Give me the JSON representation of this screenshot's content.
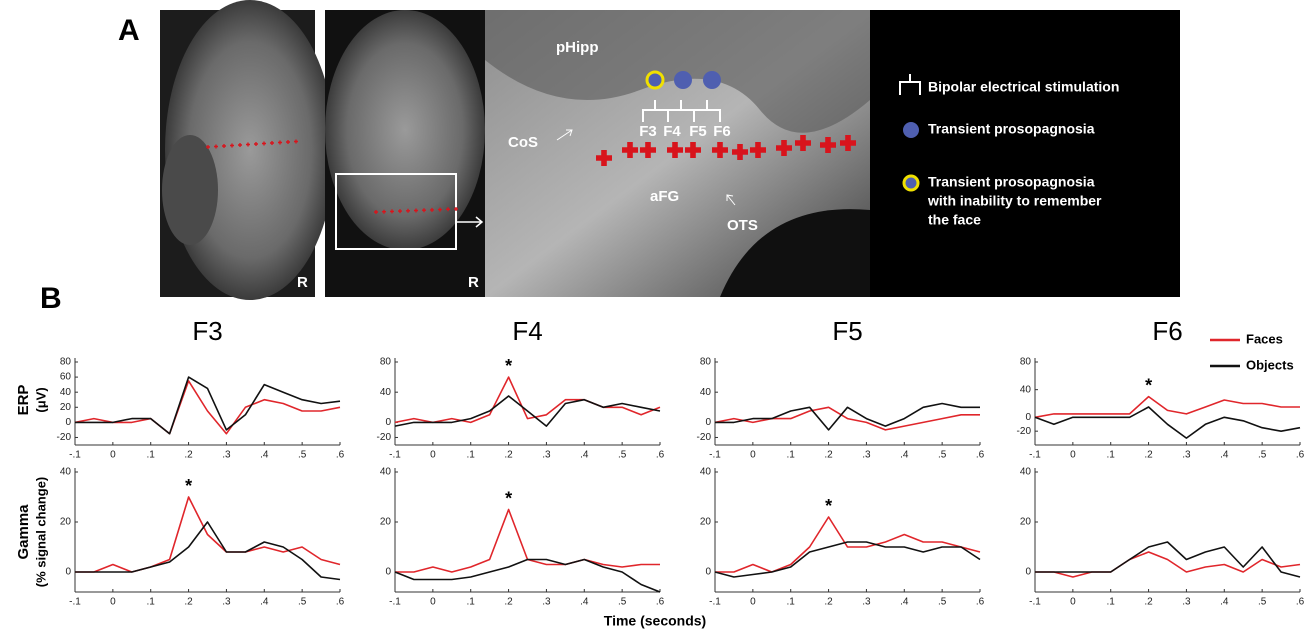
{
  "panel_a": {
    "label": "A",
    "image_labels": [
      "R",
      "R"
    ],
    "regions": [
      "pHipp",
      "CoS",
      "aFG",
      "OTS"
    ],
    "contacts": [
      "F3",
      "F4",
      "F5",
      "F6"
    ],
    "legend": [
      "Bipolar electrical stimulation",
      "Transient prosopagnosia",
      [
        "Transient prosopagnosia",
        "with inability to remember",
        "the face"
      ]
    ]
  },
  "panel_b": {
    "label": "B",
    "row_labels": [
      [
        "ERP",
        "(μV)"
      ],
      [
        "Gamma",
        "(% signal change)"
      ]
    ],
    "x_label": "Time (seconds)"
  },
  "chart_data": [
    {
      "type": "line",
      "title": "F3",
      "x": [
        -0.1,
        -0.05,
        0,
        0.05,
        0.1,
        0.15,
        0.2,
        0.25,
        0.3,
        0.35,
        0.4,
        0.45,
        0.5,
        0.55,
        0.6
      ],
      "series": [
        {
          "name": "Faces",
          "color": "#e0262b",
          "values": [
            0,
            5,
            0,
            0,
            5,
            -15,
            55,
            15,
            -15,
            20,
            30,
            25,
            15,
            15,
            20
          ]
        },
        {
          "name": "Objects",
          "color": "#111111",
          "values": [
            0,
            0,
            0,
            5,
            5,
            -15,
            60,
            45,
            -10,
            10,
            50,
            40,
            30,
            25,
            28
          ]
        }
      ],
      "xlim": [
        -0.1,
        0.6
      ],
      "xticks": [
        {
          "value": -0.1,
          "label": "-.1"
        },
        0,
        {
          "value": 0.1,
          "label": ".1"
        },
        {
          "value": 0.2,
          "label": ".2"
        },
        {
          "value": 0.3,
          "label": ".3"
        },
        {
          "value": 0.4,
          "label": ".4"
        },
        {
          "value": 0.5,
          "label": ".5"
        },
        {
          "value": 0.6,
          "label": ".6"
        }
      ],
      "ylim": [
        -30,
        80
      ],
      "yticks": [
        -20,
        0,
        20,
        40,
        60,
        80
      ]
    },
    {
      "type": "line",
      "title": "F4",
      "annotation": "*",
      "x": [
        -0.1,
        -0.05,
        0,
        0.05,
        0.1,
        0.15,
        0.2,
        0.25,
        0.3,
        0.35,
        0.4,
        0.45,
        0.5,
        0.55,
        0.6
      ],
      "series": [
        {
          "name": "Faces",
          "color": "#e0262b",
          "values": [
            0,
            5,
            0,
            5,
            0,
            10,
            60,
            5,
            10,
            30,
            30,
            20,
            20,
            10,
            20
          ]
        },
        {
          "name": "Objects",
          "color": "#111111",
          "values": [
            -5,
            0,
            0,
            0,
            5,
            15,
            35,
            15,
            -5,
            25,
            30,
            20,
            25,
            20,
            15
          ]
        }
      ],
      "xlim": [
        -0.1,
        0.6
      ],
      "xticks": [
        {
          "value": -0.1,
          "label": "-.1"
        },
        0,
        {
          "value": 0.1,
          "label": ".1"
        },
        {
          "value": 0.2,
          "label": ".2"
        },
        {
          "value": 0.3,
          "label": ".3"
        },
        {
          "value": 0.4,
          "label": ".4"
        },
        {
          "value": 0.5,
          "label": ".5"
        },
        {
          "value": 0.6,
          "label": ".6"
        }
      ],
      "ylim": [
        -30,
        80
      ],
      "yticks": [
        -20,
        0,
        40,
        80
      ]
    },
    {
      "type": "line",
      "title": "F5",
      "x": [
        -0.1,
        -0.05,
        0,
        0.05,
        0.1,
        0.15,
        0.2,
        0.25,
        0.3,
        0.35,
        0.4,
        0.45,
        0.5,
        0.55,
        0.6
      ],
      "series": [
        {
          "name": "Faces",
          "color": "#e0262b",
          "values": [
            0,
            5,
            0,
            5,
            5,
            15,
            20,
            5,
            0,
            -10,
            -5,
            0,
            5,
            10,
            10
          ]
        },
        {
          "name": "Objects",
          "color": "#111111",
          "values": [
            0,
            0,
            5,
            5,
            15,
            20,
            -10,
            20,
            5,
            -5,
            5,
            20,
            25,
            20,
            20
          ]
        }
      ],
      "xlim": [
        -0.1,
        0.6
      ],
      "xticks": [
        {
          "value": -0.1,
          "label": "-.1"
        },
        0,
        {
          "value": 0.1,
          "label": ".1"
        },
        {
          "value": 0.2,
          "label": ".2"
        },
        {
          "value": 0.3,
          "label": ".3"
        },
        {
          "value": 0.4,
          "label": ".4"
        },
        {
          "value": 0.5,
          "label": ".5"
        },
        {
          "value": 0.6,
          "label": ".6"
        }
      ],
      "ylim": [
        -30,
        80
      ],
      "yticks": [
        -20,
        0,
        40,
        80
      ]
    },
    {
      "type": "line",
      "title": "F6",
      "annotation": "*",
      "legend": "upper right",
      "x": [
        -0.1,
        -0.05,
        0,
        0.05,
        0.1,
        0.15,
        0.2,
        0.25,
        0.3,
        0.35,
        0.4,
        0.45,
        0.5,
        0.55,
        0.6
      ],
      "series": [
        {
          "name": "Faces",
          "color": "#e0262b",
          "values": [
            0,
            5,
            5,
            5,
            5,
            5,
            30,
            10,
            5,
            15,
            25,
            20,
            20,
            15,
            15
          ]
        },
        {
          "name": "Objects",
          "color": "#111111",
          "values": [
            0,
            -10,
            0,
            0,
            0,
            0,
            15,
            -10,
            -30,
            -10,
            0,
            -5,
            -15,
            -20,
            -15
          ]
        }
      ],
      "xlim": [
        -0.1,
        0.6
      ],
      "xticks": [
        {
          "value": -0.1,
          "label": "-.1"
        },
        0,
        {
          "value": 0.1,
          "label": ".1"
        },
        {
          "value": 0.2,
          "label": ".2"
        },
        {
          "value": 0.3,
          "label": ".3"
        },
        {
          "value": 0.4,
          "label": ".4"
        },
        {
          "value": 0.5,
          "label": ".5"
        },
        {
          "value": 0.6,
          "label": ".6"
        }
      ],
      "ylim": [
        -40,
        80
      ],
      "yticks": [
        -20,
        0,
        40,
        80
      ]
    },
    {
      "type": "line",
      "annotation": "*",
      "x": [
        -0.1,
        -0.05,
        0,
        0.05,
        0.1,
        0.15,
        0.2,
        0.25,
        0.3,
        0.35,
        0.4,
        0.45,
        0.5,
        0.55,
        0.6
      ],
      "series": [
        {
          "name": "Faces",
          "color": "#e0262b",
          "values": [
            0,
            0,
            3,
            0,
            2,
            5,
            30,
            15,
            8,
            8,
            10,
            8,
            10,
            5,
            3
          ]
        },
        {
          "name": "Objects",
          "color": "#111111",
          "values": [
            0,
            0,
            0,
            0,
            2,
            4,
            10,
            20,
            8,
            8,
            12,
            10,
            5,
            -2,
            -3
          ]
        }
      ],
      "xlim": [
        -0.1,
        0.6
      ],
      "xticks": [
        {
          "value": -0.1,
          "label": "-.1"
        },
        0,
        {
          "value": 0.1,
          "label": ".1"
        },
        {
          "value": 0.2,
          "label": ".2"
        },
        {
          "value": 0.3,
          "label": ".3"
        },
        {
          "value": 0.4,
          "label": ".4"
        },
        {
          "value": 0.5,
          "label": ".5"
        },
        {
          "value": 0.6,
          "label": ".6"
        }
      ],
      "ylim": [
        -8,
        40
      ],
      "yticks": [
        0,
        20,
        40
      ]
    },
    {
      "type": "line",
      "annotation": "*",
      "x": [
        -0.1,
        -0.05,
        0,
        0.05,
        0.1,
        0.15,
        0.2,
        0.25,
        0.3,
        0.35,
        0.4,
        0.45,
        0.5,
        0.55,
        0.6
      ],
      "series": [
        {
          "name": "Faces",
          "color": "#e0262b",
          "values": [
            0,
            0,
            2,
            0,
            2,
            5,
            25,
            5,
            3,
            3,
            5,
            3,
            2,
            3,
            3
          ]
        },
        {
          "name": "Objects",
          "color": "#111111",
          "values": [
            0,
            -3,
            -3,
            -3,
            -2,
            0,
            2,
            5,
            5,
            3,
            5,
            2,
            0,
            -5,
            -8
          ]
        }
      ],
      "xlim": [
        -0.1,
        0.6
      ],
      "xticks": [
        {
          "value": -0.1,
          "label": "-.1"
        },
        0,
        {
          "value": 0.1,
          "label": ".1"
        },
        {
          "value": 0.2,
          "label": ".2"
        },
        {
          "value": 0.3,
          "label": ".3"
        },
        {
          "value": 0.4,
          "label": ".4"
        },
        {
          "value": 0.5,
          "label": ".5"
        },
        {
          "value": 0.6,
          "label": ".6"
        }
      ],
      "ylim": [
        -8,
        40
      ],
      "yticks": [
        0,
        20,
        40
      ]
    },
    {
      "type": "line",
      "annotation": "*",
      "x": [
        -0.1,
        -0.05,
        0,
        0.05,
        0.1,
        0.15,
        0.2,
        0.25,
        0.3,
        0.35,
        0.4,
        0.45,
        0.5,
        0.55,
        0.6
      ],
      "series": [
        {
          "name": "Faces",
          "color": "#e0262b",
          "values": [
            0,
            0,
            3,
            0,
            3,
            10,
            22,
            10,
            10,
            12,
            15,
            12,
            12,
            10,
            8
          ]
        },
        {
          "name": "Objects",
          "color": "#111111",
          "values": [
            0,
            -2,
            -1,
            0,
            2,
            8,
            10,
            12,
            12,
            10,
            10,
            8,
            10,
            10,
            5
          ]
        }
      ],
      "xlim": [
        -0.1,
        0.6
      ],
      "xticks": [
        {
          "value": -0.1,
          "label": "-.1"
        },
        0,
        {
          "value": 0.1,
          "label": ".1"
        },
        {
          "value": 0.2,
          "label": ".2"
        },
        {
          "value": 0.3,
          "label": ".3"
        },
        {
          "value": 0.4,
          "label": ".4"
        },
        {
          "value": 0.5,
          "label": ".5"
        },
        {
          "value": 0.6,
          "label": ".6"
        }
      ],
      "ylim": [
        -8,
        40
      ],
      "yticks": [
        0,
        20,
        40
      ]
    },
    {
      "type": "line",
      "x": [
        -0.1,
        -0.05,
        0,
        0.05,
        0.1,
        0.15,
        0.2,
        0.25,
        0.3,
        0.35,
        0.4,
        0.45,
        0.5,
        0.55,
        0.6
      ],
      "series": [
        {
          "name": "Faces",
          "color": "#e0262b",
          "values": [
            0,
            0,
            -2,
            0,
            0,
            5,
            8,
            5,
            0,
            2,
            3,
            0,
            5,
            2,
            3
          ]
        },
        {
          "name": "Objects",
          "color": "#111111",
          "values": [
            0,
            0,
            0,
            0,
            0,
            5,
            10,
            12,
            5,
            8,
            10,
            2,
            10,
            0,
            -2
          ]
        }
      ],
      "xlim": [
        -0.1,
        0.6
      ],
      "xticks": [
        {
          "value": -0.1,
          "label": "-.1"
        },
        0,
        {
          "value": 0.1,
          "label": ".1"
        },
        {
          "value": 0.2,
          "label": ".2"
        },
        {
          "value": 0.3,
          "label": ".3"
        },
        {
          "value": 0.4,
          "label": ".4"
        },
        {
          "value": 0.5,
          "label": ".5"
        },
        {
          "value": 0.6,
          "label": ".6"
        }
      ],
      "ylim": [
        -8,
        40
      ],
      "yticks": [
        0,
        20,
        40
      ]
    }
  ]
}
